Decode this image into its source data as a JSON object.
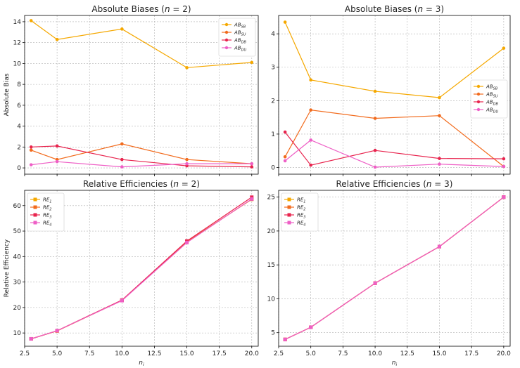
{
  "chart_data": [
    {
      "type": "line",
      "title": "Absolute Biases (n = 2)",
      "xlabel": "",
      "ylabel": "Absolute Bias",
      "x": [
        3,
        5,
        10,
        15,
        20
      ],
      "xlim": [
        2.5,
        20.5
      ],
      "ylim": [
        -0.6,
        14.6
      ],
      "xticks": [
        "2.5",
        "5.0",
        "7.5",
        "10.0",
        "12.5",
        "15.0",
        "17.5",
        "20.0"
      ],
      "xtick_values": [
        2.5,
        5,
        7.5,
        10,
        12.5,
        15,
        17.5,
        20
      ],
      "xtick_labels_visible": false,
      "yticks": [
        "0",
        "2",
        "4",
        "6",
        "8",
        "10",
        "12",
        "14"
      ],
      "ytick_values": [
        0,
        2,
        4,
        6,
        8,
        10,
        12,
        14
      ],
      "marker": "circle",
      "legend_position": "top-right",
      "series": [
        {
          "name": "AB_SB",
          "label": "AB",
          "sub": "SB",
          "color": "#f5a800",
          "values": [
            14.1,
            12.3,
            13.3,
            9.6,
            10.1
          ]
        },
        {
          "name": "AB_SU",
          "label": "AB",
          "sub": "SU",
          "color": "#f26b1d",
          "values": [
            1.7,
            0.8,
            2.3,
            0.8,
            0.4
          ]
        },
        {
          "name": "AB_DB",
          "label": "AB",
          "sub": "DB",
          "color": "#e8244e",
          "values": [
            2.0,
            2.1,
            0.8,
            0.2,
            0.1
          ]
        },
        {
          "name": "AB_DU",
          "label": "AB",
          "sub": "DU",
          "color": "#ee5fc6",
          "values": [
            0.3,
            0.6,
            0.1,
            0.4,
            0.4
          ]
        }
      ]
    },
    {
      "type": "line",
      "title": "Absolute Biases (n = 3)",
      "xlabel": "",
      "ylabel": "",
      "x": [
        3,
        5,
        10,
        15,
        20
      ],
      "xlim": [
        2.5,
        20.5
      ],
      "ylim": [
        -0.2,
        4.55
      ],
      "xticks": [
        "2.5",
        "5.0",
        "7.5",
        "10.0",
        "12.5",
        "15.0",
        "17.5",
        "20.0"
      ],
      "xtick_values": [
        2.5,
        5,
        7.5,
        10,
        12.5,
        15,
        17.5,
        20
      ],
      "xtick_labels_visible": false,
      "yticks": [
        "0",
        "1",
        "2",
        "3",
        "4"
      ],
      "ytick_values": [
        0,
        1,
        2,
        3,
        4
      ],
      "marker": "circle",
      "legend_position": "center-right",
      "series": [
        {
          "name": "AB_SB",
          "label": "AB",
          "sub": "SB",
          "color": "#f5a800",
          "values": [
            4.35,
            2.62,
            2.28,
            2.09,
            3.57
          ]
        },
        {
          "name": "AB_SU",
          "label": "AB",
          "sub": "SU",
          "color": "#f26b1d",
          "values": [
            0.32,
            1.72,
            1.47,
            1.55,
            0.03
          ]
        },
        {
          "name": "AB_DB",
          "label": "AB",
          "sub": "DB",
          "color": "#e8244e",
          "values": [
            1.06,
            0.07,
            0.51,
            0.27,
            0.26
          ]
        },
        {
          "name": "AB_DU",
          "label": "AB",
          "sub": "DU",
          "color": "#ee5fc6",
          "values": [
            0.2,
            0.82,
            0.01,
            0.1,
            0.03
          ]
        }
      ]
    },
    {
      "type": "line",
      "title": "Relative Efficiencies (n = 2)",
      "xlabel": "n_i",
      "ylabel": "Relative Efficiency",
      "x": [
        3,
        5,
        10,
        15,
        20
      ],
      "xlim": [
        2.5,
        20.5
      ],
      "ylim": [
        4.8,
        66
      ],
      "xticks": [
        "2.5",
        "5.0",
        "7.5",
        "10.0",
        "12.5",
        "15.0",
        "17.5",
        "20.0"
      ],
      "xtick_values": [
        2.5,
        5,
        7.5,
        10,
        12.5,
        15,
        17.5,
        20
      ],
      "xtick_labels_visible": true,
      "yticks": [
        "10",
        "20",
        "30",
        "40",
        "50",
        "60"
      ],
      "ytick_values": [
        10,
        20,
        30,
        40,
        50,
        60
      ],
      "marker": "square",
      "legend_position": "top-left",
      "series": [
        {
          "name": "RE_1",
          "label": "RE",
          "sub": "1",
          "color": "#f5a800",
          "values": [
            7.7,
            10.8,
            22.8,
            45.8,
            62.5
          ]
        },
        {
          "name": "RE_2",
          "label": "RE",
          "sub": "2",
          "color": "#f26b1d",
          "values": [
            7.7,
            10.8,
            22.8,
            45.8,
            62.5
          ]
        },
        {
          "name": "RE_3",
          "label": "RE",
          "sub": "3",
          "color": "#e8244e",
          "values": [
            7.7,
            10.9,
            22.9,
            46.1,
            63.3
          ]
        },
        {
          "name": "RE_4",
          "label": "RE",
          "sub": "4",
          "color": "#ee5fc6",
          "values": [
            7.7,
            10.9,
            22.7,
            45.5,
            62.6
          ]
        }
      ]
    },
    {
      "type": "line",
      "title": "Relative Efficiencies (n = 3)",
      "xlabel": "n_i",
      "ylabel": "",
      "x": [
        3,
        5,
        10,
        15,
        20
      ],
      "xlim": [
        2.5,
        20.5
      ],
      "ylim": [
        3.0,
        26.0
      ],
      "xticks": [
        "2.5",
        "5.0",
        "7.5",
        "10.0",
        "12.5",
        "15.0",
        "17.5",
        "20.0"
      ],
      "xtick_values": [
        2.5,
        5,
        7.5,
        10,
        12.5,
        15,
        17.5,
        20
      ],
      "xtick_labels_visible": true,
      "yticks": [
        "5",
        "10",
        "15",
        "20",
        "25"
      ],
      "ytick_values": [
        5,
        10,
        15,
        20,
        25
      ],
      "marker": "square",
      "legend_position": "top-left",
      "series": [
        {
          "name": "RE_1",
          "label": "RE",
          "sub": "1",
          "color": "#f5a800",
          "values": [
            4.0,
            5.8,
            12.3,
            17.7,
            25.0
          ]
        },
        {
          "name": "RE_2",
          "label": "RE",
          "sub": "2",
          "color": "#f26b1d",
          "values": [
            4.0,
            5.8,
            12.3,
            17.7,
            25.0
          ]
        },
        {
          "name": "RE_3",
          "label": "RE",
          "sub": "3",
          "color": "#e8244e",
          "values": [
            4.0,
            5.8,
            12.3,
            17.7,
            25.0
          ]
        },
        {
          "name": "RE_4",
          "label": "RE",
          "sub": "4",
          "color": "#ee5fc6",
          "values": [
            4.0,
            5.8,
            12.3,
            17.7,
            25.0
          ]
        }
      ]
    }
  ]
}
